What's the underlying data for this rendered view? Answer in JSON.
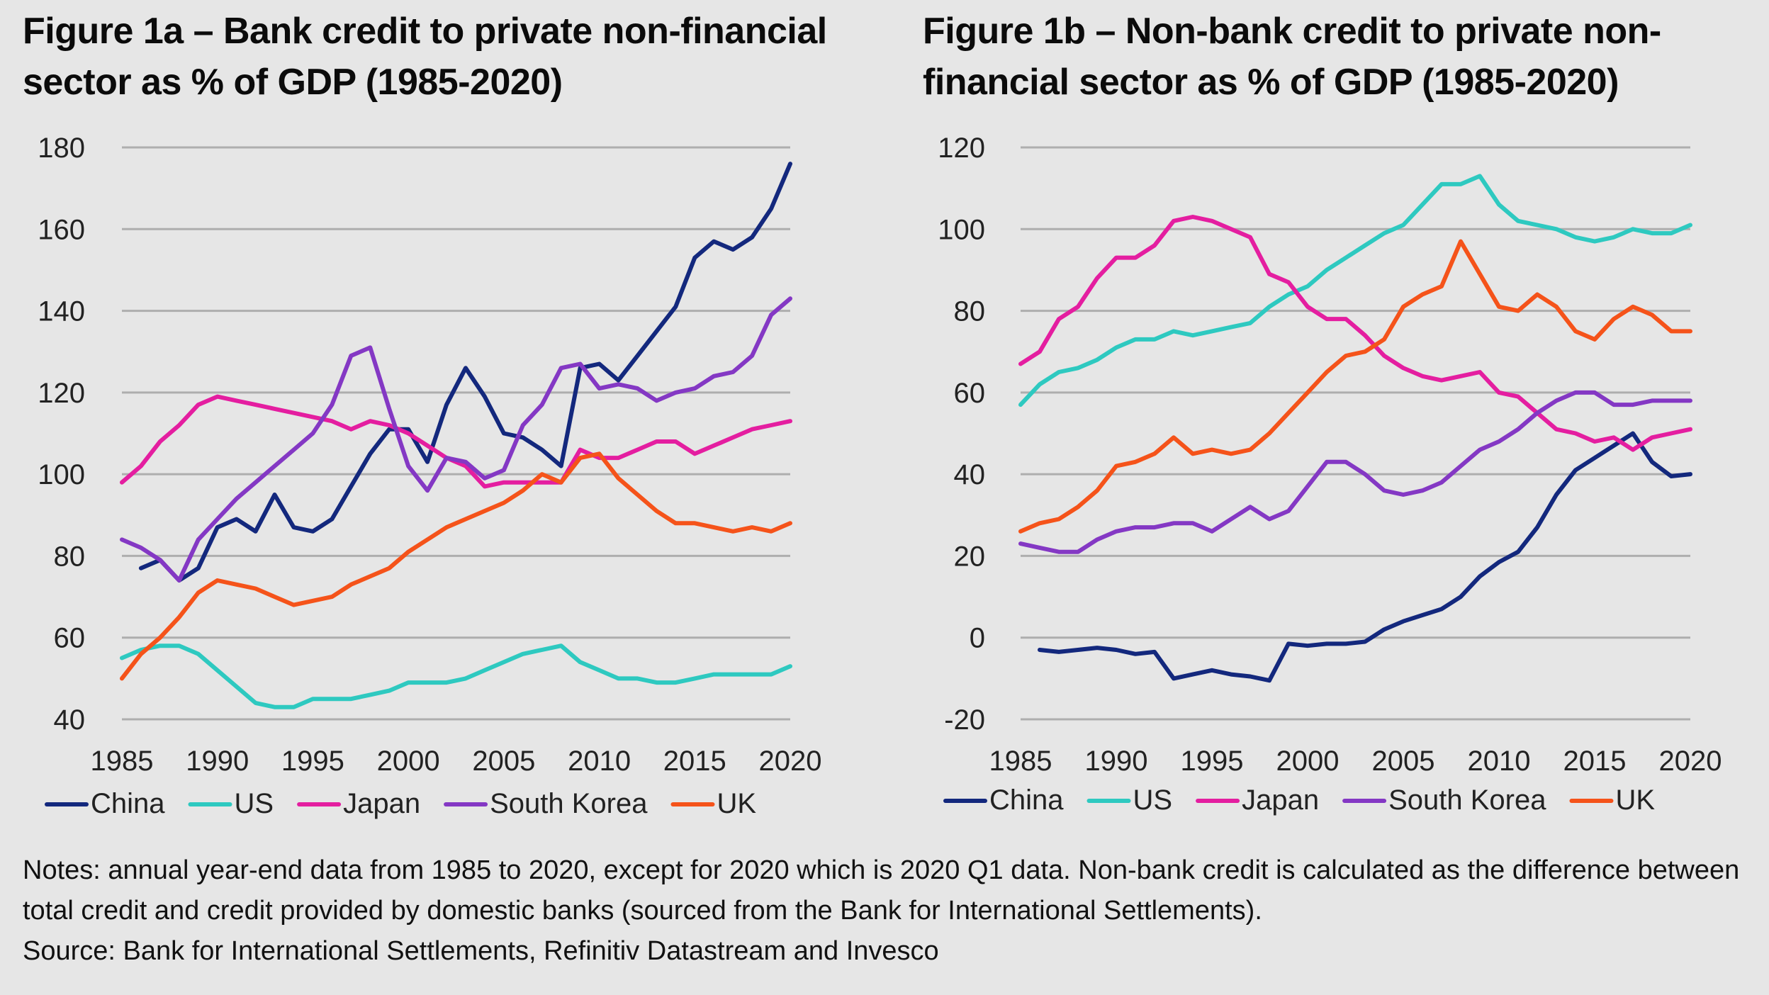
{
  "chart_data": [
    {
      "type": "line",
      "id": "fig1a",
      "title_line1": "Figure 1a – Bank credit to private non-financial",
      "title_line2": "sector as % of GDP (1985-2020)",
      "xlabel": "",
      "ylabel": "",
      "xlim": [
        1985,
        2020
      ],
      "ylim": [
        40,
        180
      ],
      "x_ticks": [
        1985,
        1990,
        1995,
        2000,
        2005,
        2010,
        2015,
        2020
      ],
      "y_ticks": [
        40,
        60,
        80,
        100,
        120,
        140,
        160,
        180
      ],
      "grid": true,
      "legend_position": "bottom",
      "series": [
        {
          "name": "China",
          "color": "#13287d",
          "start_year": 1986,
          "values": [
            77,
            79,
            74,
            77,
            87,
            89,
            86,
            95,
            87,
            86,
            89,
            97,
            105,
            111,
            111,
            103,
            117,
            126,
            119,
            110,
            109,
            106,
            102,
            126,
            127,
            123,
            129,
            135,
            141,
            153,
            157,
            155,
            158,
            165,
            176
          ]
        },
        {
          "name": "US",
          "color": "#2ec9c0",
          "start_year": 1985,
          "values": [
            55,
            57,
            58,
            58,
            56,
            52,
            48,
            44,
            43,
            43,
            45,
            45,
            45,
            46,
            47,
            49,
            49,
            49,
            50,
            52,
            54,
            56,
            57,
            58,
            54,
            52,
            50,
            50,
            49,
            49,
            50,
            51,
            51,
            51,
            51,
            53
          ]
        },
        {
          "name": "Japan",
          "color": "#e41ea0",
          "start_year": 1985,
          "values": [
            98,
            102,
            108,
            112,
            117,
            119,
            118,
            117,
            116,
            115,
            114,
            113,
            111,
            113,
            112,
            110,
            107,
            104,
            102,
            97,
            98,
            98,
            98,
            98,
            106,
            104,
            104,
            106,
            108,
            108,
            105,
            107,
            109,
            111,
            112,
            113
          ]
        },
        {
          "name": "South Korea",
          "color": "#8438c4",
          "start_year": 1985,
          "values": [
            84,
            82,
            79,
            74,
            84,
            89,
            94,
            98,
            102,
            106,
            110,
            117,
            129,
            131,
            116,
            102,
            96,
            104,
            103,
            99,
            101,
            112,
            117,
            126,
            127,
            121,
            122,
            121,
            118,
            120,
            121,
            124,
            125,
            129,
            139,
            143
          ]
        },
        {
          "name": "UK",
          "color": "#f5531a",
          "start_year": 1985,
          "values": [
            50,
            56,
            60,
            65,
            71,
            74,
            73,
            72,
            70,
            68,
            69,
            70,
            73,
            75,
            77,
            81,
            84,
            87,
            89,
            91,
            93,
            96,
            100,
            98,
            104,
            105,
            99,
            95,
            91,
            88,
            88,
            87,
            86,
            87,
            86,
            88
          ]
        }
      ]
    },
    {
      "type": "line",
      "id": "fig1b",
      "title_line1": "Figure 1b – Non-bank credit to private non-",
      "title_line2": "financial sector as % of GDP (1985-2020)",
      "xlabel": "",
      "ylabel": "",
      "xlim": [
        1985,
        2020
      ],
      "ylim": [
        -20,
        120
      ],
      "x_ticks": [
        1985,
        1990,
        1995,
        2000,
        2005,
        2010,
        2015,
        2020
      ],
      "y_ticks": [
        -20,
        0,
        20,
        40,
        60,
        80,
        100,
        120
      ],
      "grid": true,
      "legend_position": "bottom",
      "series": [
        {
          "name": "China",
          "color": "#13287d",
          "start_year": 1986,
          "values": [
            -3,
            -3.5,
            -3,
            -2.5,
            -3,
            -4,
            -3.5,
            -10,
            -9,
            -8,
            -9,
            -9.5,
            -10.5,
            -1.5,
            -2,
            -1.5,
            -1.5,
            -1,
            2,
            4,
            5.5,
            7,
            10,
            15,
            18.5,
            21,
            27,
            35,
            41,
            44,
            47,
            50,
            43,
            39.5,
            40
          ]
        },
        {
          "name": "US",
          "color": "#2ec9c0",
          "start_year": 1985,
          "values": [
            57,
            62,
            65,
            66,
            68,
            71,
            73,
            73,
            75,
            74,
            75,
            76,
            77,
            81,
            84,
            86,
            90,
            93,
            96,
            99,
            101,
            106,
            111,
            111,
            113,
            106,
            102,
            101,
            100,
            98,
            97,
            98,
            100,
            99,
            99,
            101
          ]
        },
        {
          "name": "Japan",
          "color": "#e41ea0",
          "start_year": 1985,
          "values": [
            67,
            70,
            78,
            81,
            88,
            93,
            93,
            96,
            102,
            103,
            102,
            100,
            98,
            89,
            87,
            81,
            78,
            78,
            74,
            69,
            66,
            64,
            63,
            64,
            65,
            60,
            59,
            55,
            51,
            50,
            48,
            49,
            46,
            49,
            50,
            51
          ]
        },
        {
          "name": "South Korea",
          "color": "#8438c4",
          "start_year": 1985,
          "values": [
            23,
            22,
            21,
            21,
            24,
            26,
            27,
            27,
            28,
            28,
            26,
            29,
            32,
            29,
            31,
            37,
            43,
            43,
            40,
            36,
            35,
            36,
            38,
            42,
            46,
            48,
            51,
            55,
            58,
            60,
            60,
            57,
            57,
            58,
            58,
            58
          ]
        },
        {
          "name": "UK",
          "color": "#f5531a",
          "start_year": 1985,
          "values": [
            26,
            28,
            29,
            32,
            36,
            42,
            43,
            45,
            49,
            45,
            46,
            45,
            46,
            50,
            55,
            60,
            65,
            69,
            70,
            73,
            81,
            84,
            86,
            97,
            89,
            81,
            80,
            84,
            81,
            75,
            73,
            78,
            81,
            79,
            75,
            75
          ]
        }
      ]
    }
  ],
  "notes": {
    "line1": "Notes: annual year-end data from 1985 to 2020, except for 2020 which is 2020 Q1 data. Non-bank credit is calculated as the difference between",
    "line2": "total credit and credit provided by domestic banks (sourced from the Bank for International Settlements).",
    "line3": "Source: Bank for International Settlements, Refinitiv Datastream and Invesco"
  },
  "colors": {
    "background": "#e6e6e6",
    "gridline": "#aeaeae",
    "axis_text": "#222222"
  }
}
